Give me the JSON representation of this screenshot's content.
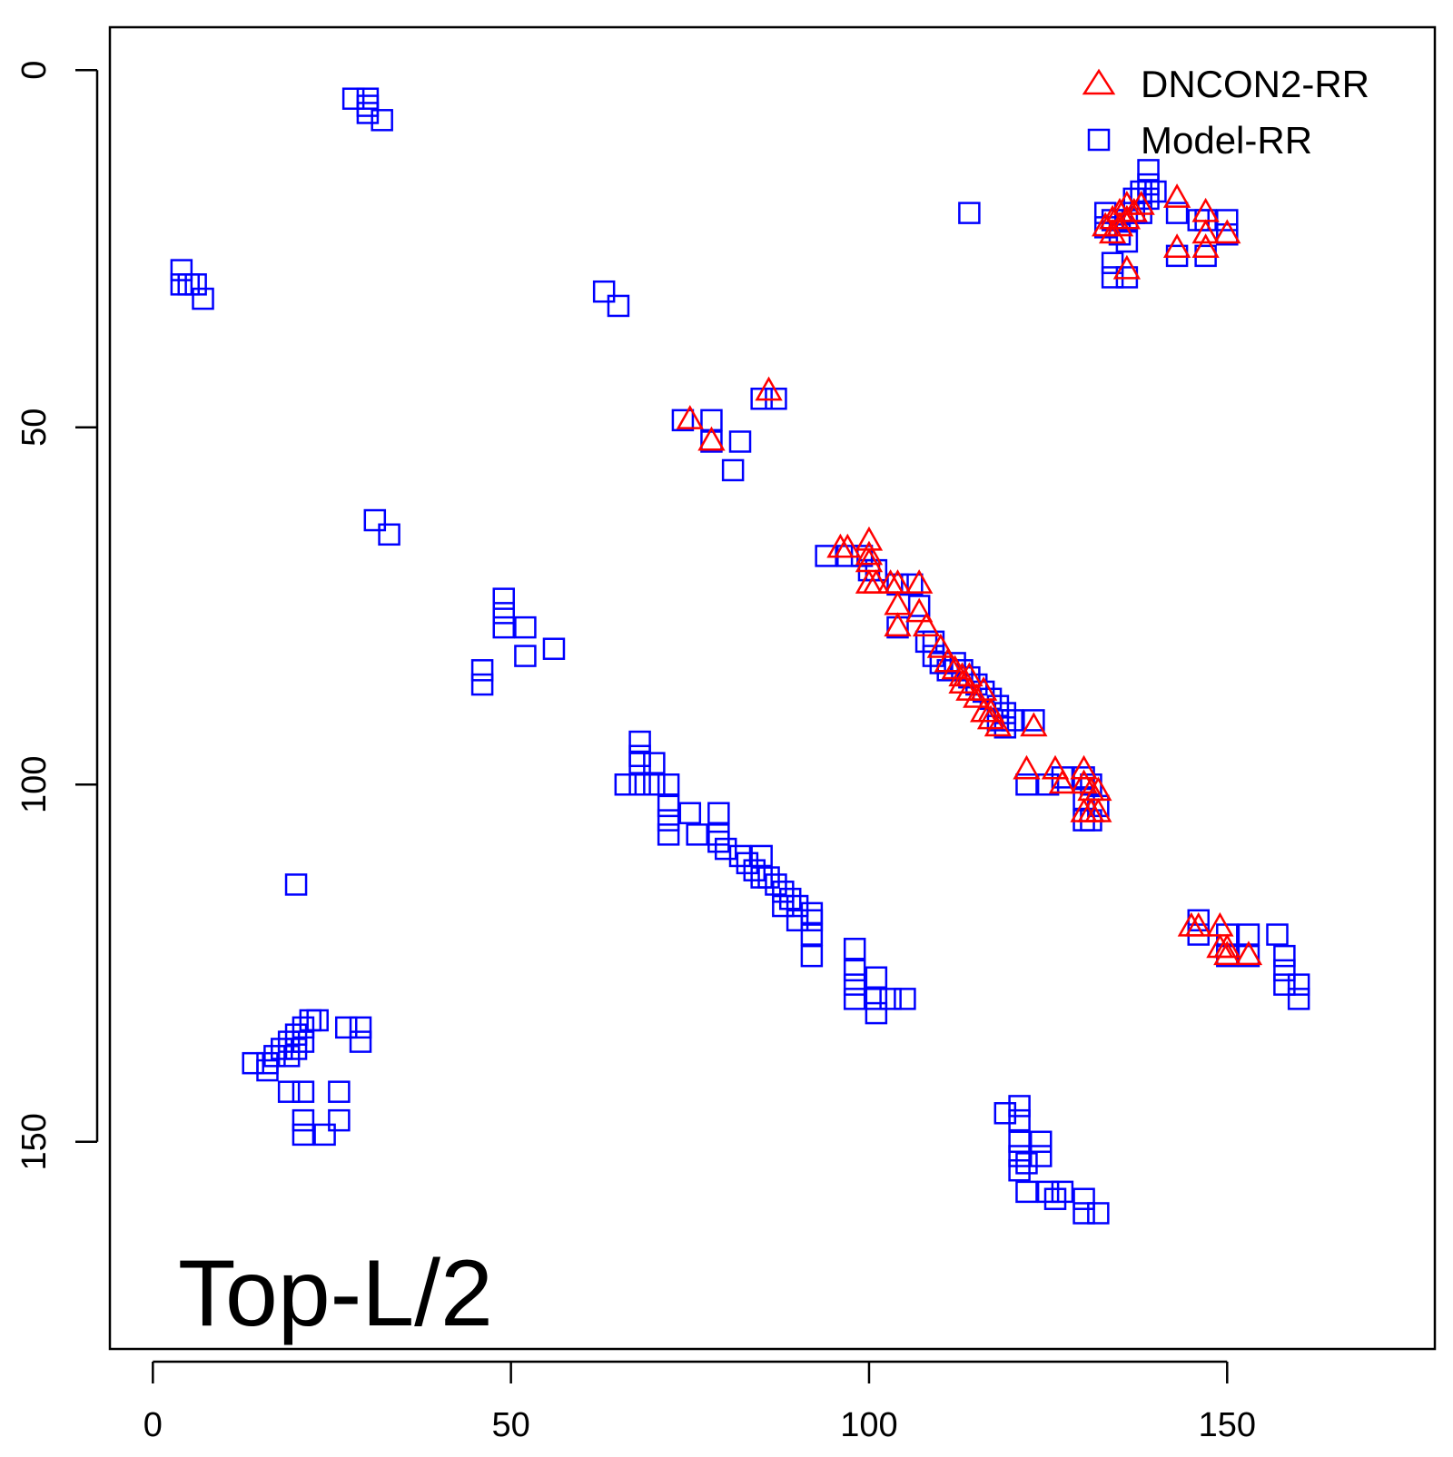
{
  "chart_data": {
    "type": "scatter",
    "title": "",
    "xlabel": "",
    "ylabel": "",
    "xlim": [
      -6,
      179
    ],
    "ylim": [
      -6,
      179
    ],
    "y_reversed": true,
    "grid": false,
    "x_ticks": [
      0,
      50,
      100,
      150
    ],
    "y_ticks": [
      0,
      50,
      100,
      150
    ],
    "annotation": "Top-L/2",
    "legend_position": "top-right",
    "colors": {
      "dncon2": "#ff0000",
      "model": "#0000ff",
      "axis": "#000000"
    },
    "series": [
      {
        "name": "DNCON2-RR",
        "marker": "triangle-icon",
        "color": "#ff0000",
        "points": [
          [
            75,
            49
          ],
          [
            78,
            52
          ],
          [
            86,
            45
          ],
          [
            96,
            67
          ],
          [
            97,
            67
          ],
          [
            100,
            66
          ],
          [
            100,
            68
          ],
          [
            100,
            69
          ],
          [
            100,
            72
          ],
          [
            101,
            72
          ],
          [
            103,
            72
          ],
          [
            104,
            72
          ],
          [
            104,
            75
          ],
          [
            104,
            78
          ],
          [
            107,
            72
          ],
          [
            107,
            76
          ],
          [
            108,
            78
          ],
          [
            110,
            81
          ],
          [
            111,
            83
          ],
          [
            112,
            84
          ],
          [
            113,
            85
          ],
          [
            113,
            86
          ],
          [
            114,
            85
          ],
          [
            114,
            87
          ],
          [
            115,
            88
          ],
          [
            116,
            87
          ],
          [
            116,
            90
          ],
          [
            117,
            90
          ],
          [
            117,
            91
          ],
          [
            118,
            92
          ],
          [
            123,
            92
          ],
          [
            122,
            98
          ],
          [
            126,
            98
          ],
          [
            127,
            100
          ],
          [
            130,
            98
          ],
          [
            130,
            100
          ],
          [
            131,
            101
          ],
          [
            132,
            101
          ],
          [
            130,
            104
          ],
          [
            131,
            104
          ],
          [
            132,
            104
          ],
          [
            133,
            22
          ],
          [
            134,
            21
          ],
          [
            134,
            23
          ],
          [
            135,
            20
          ],
          [
            135,
            22
          ],
          [
            136,
            19
          ],
          [
            136,
            21
          ],
          [
            137,
            20
          ],
          [
            138,
            19
          ],
          [
            143,
            18
          ],
          [
            147,
            20
          ],
          [
            147,
            23
          ],
          [
            147,
            25
          ],
          [
            150,
            23
          ],
          [
            143,
            25
          ],
          [
            136,
            28
          ],
          [
            145,
            120
          ],
          [
            146,
            120
          ],
          [
            149,
            120
          ],
          [
            149,
            123
          ],
          [
            150,
            123
          ],
          [
            150,
            124
          ],
          [
            153,
            124
          ]
        ]
      },
      {
        "name": "Model-RR",
        "marker": "square-icon",
        "color": "#0000ff",
        "points": [
          [
            28,
            4
          ],
          [
            30,
            4
          ],
          [
            30,
            5
          ],
          [
            30,
            6
          ],
          [
            32,
            7
          ],
          [
            4,
            28
          ],
          [
            4,
            30
          ],
          [
            5,
            30
          ],
          [
            6,
            30
          ],
          [
            7,
            32
          ],
          [
            63,
            31
          ],
          [
            65,
            33
          ],
          [
            31,
            63
          ],
          [
            33,
            65
          ],
          [
            74,
            49
          ],
          [
            78,
            49
          ],
          [
            78,
            52
          ],
          [
            82,
            52
          ],
          [
            81,
            56
          ],
          [
            85,
            46
          ],
          [
            87,
            46
          ],
          [
            49,
            74
          ],
          [
            49,
            76
          ],
          [
            49,
            78
          ],
          [
            52,
            78
          ],
          [
            52,
            82
          ],
          [
            56,
            81
          ],
          [
            46,
            84
          ],
          [
            46,
            86
          ],
          [
            114,
            20
          ],
          [
            139,
            14
          ],
          [
            139,
            16
          ],
          [
            138,
            17
          ],
          [
            140,
            17
          ],
          [
            137,
            18
          ],
          [
            139,
            18
          ],
          [
            133,
            20
          ],
          [
            133,
            22
          ],
          [
            134,
            21
          ],
          [
            135,
            23
          ],
          [
            136,
            21
          ],
          [
            136,
            24
          ],
          [
            137,
            20
          ],
          [
            138,
            20
          ],
          [
            143,
            20
          ],
          [
            146,
            21
          ],
          [
            147,
            21
          ],
          [
            150,
            21
          ],
          [
            143,
            26
          ],
          [
            147,
            26
          ],
          [
            150,
            23
          ],
          [
            134,
            27
          ],
          [
            134,
            29
          ],
          [
            136,
            29
          ],
          [
            20,
            114
          ],
          [
            94,
            68
          ],
          [
            97,
            68
          ],
          [
            99,
            68
          ],
          [
            100,
            70
          ],
          [
            101,
            70
          ],
          [
            104,
            72
          ],
          [
            106,
            72
          ],
          [
            107,
            75
          ],
          [
            104,
            78
          ],
          [
            108,
            80
          ],
          [
            109,
            80
          ],
          [
            109,
            82
          ],
          [
            110,
            83
          ],
          [
            111,
            84
          ],
          [
            112,
            83
          ],
          [
            113,
            84
          ],
          [
            114,
            85
          ],
          [
            115,
            86
          ],
          [
            116,
            87
          ],
          [
            117,
            88
          ],
          [
            118,
            89
          ],
          [
            119,
            90
          ],
          [
            118,
            91
          ],
          [
            119,
            92
          ],
          [
            120,
            91
          ],
          [
            123,
            91
          ],
          [
            122,
            100
          ],
          [
            125,
            100
          ],
          [
            127,
            99
          ],
          [
            130,
            99
          ],
          [
            131,
            100
          ],
          [
            130,
            102
          ],
          [
            132,
            103
          ],
          [
            130,
            105
          ],
          [
            131,
            105
          ],
          [
            68,
            94
          ],
          [
            68,
            96
          ],
          [
            68,
            97
          ],
          [
            70,
            97
          ],
          [
            66,
            100
          ],
          [
            68,
            100
          ],
          [
            70,
            100
          ],
          [
            72,
            100
          ],
          [
            72,
            103
          ],
          [
            72,
            105
          ],
          [
            72,
            107
          ],
          [
            75,
            104
          ],
          [
            76,
            107
          ],
          [
            79,
            104
          ],
          [
            79,
            107
          ],
          [
            79,
            108
          ],
          [
            80,
            109
          ],
          [
            82,
            110
          ],
          [
            83,
            111
          ],
          [
            84,
            112
          ],
          [
            85,
            110
          ],
          [
            85,
            113
          ],
          [
            86,
            113
          ],
          [
            87,
            114
          ],
          [
            88,
            115
          ],
          [
            88,
            117
          ],
          [
            89,
            116
          ],
          [
            90,
            117
          ],
          [
            90,
            119
          ],
          [
            92,
            118
          ],
          [
            92,
            119
          ],
          [
            92,
            121
          ],
          [
            92,
            124
          ],
          [
            98,
            123
          ],
          [
            98,
            126
          ],
          [
            98,
            128
          ],
          [
            98,
            130
          ],
          [
            101,
            127
          ],
          [
            101,
            130
          ],
          [
            101,
            132
          ],
          [
            103,
            130
          ],
          [
            105,
            130
          ],
          [
            146,
            119
          ],
          [
            146,
            121
          ],
          [
            150,
            121
          ],
          [
            153,
            121
          ],
          [
            150,
            124
          ],
          [
            153,
            124
          ],
          [
            157,
            121
          ],
          [
            158,
            124
          ],
          [
            158,
            126
          ],
          [
            158,
            128
          ],
          [
            160,
            128
          ],
          [
            160,
            130
          ],
          [
            14,
            139
          ],
          [
            16,
            139
          ],
          [
            16,
            140
          ],
          [
            17,
            138
          ],
          [
            18,
            137
          ],
          [
            19,
            136
          ],
          [
            19,
            138
          ],
          [
            20,
            135
          ],
          [
            21,
            134
          ],
          [
            22,
            133
          ],
          [
            23,
            133
          ],
          [
            20,
            137
          ],
          [
            21,
            136
          ],
          [
            27,
            134
          ],
          [
            29,
            134
          ],
          [
            29,
            136
          ],
          [
            19,
            143
          ],
          [
            21,
            143
          ],
          [
            26,
            143
          ],
          [
            21,
            147
          ],
          [
            21,
            149
          ],
          [
            24,
            149
          ],
          [
            26,
            147
          ],
          [
            119,
            146
          ],
          [
            121,
            145
          ],
          [
            121,
            147
          ],
          [
            121,
            150
          ],
          [
            121,
            152
          ],
          [
            124,
            150
          ],
          [
            124,
            152
          ],
          [
            122,
            153
          ],
          [
            121,
            154
          ],
          [
            122,
            157
          ],
          [
            125,
            157
          ],
          [
            127,
            157
          ],
          [
            126,
            158
          ],
          [
            130,
            158
          ],
          [
            130,
            160
          ],
          [
            132,
            160
          ]
        ]
      }
    ]
  }
}
